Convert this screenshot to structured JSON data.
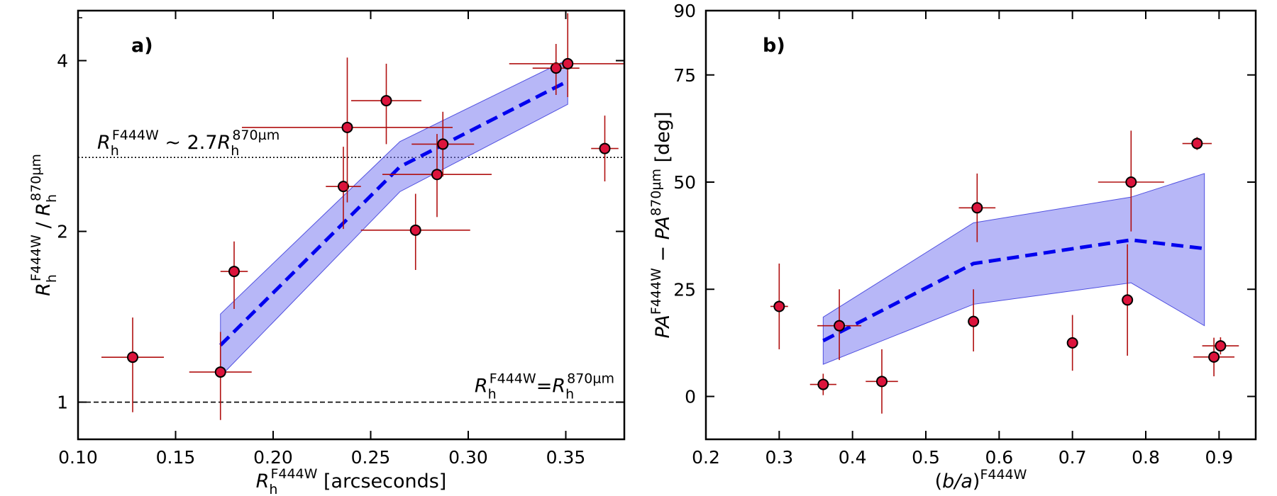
{
  "chart_data": [
    {
      "type": "scatter",
      "panel_label": "a)",
      "xlabel": "R_h^F444W [arcseconds]",
      "ylabel": "R_h^F444W / R_h^870µm",
      "xlabel_parts": {
        "main": "R",
        "sub": "h",
        "sup": "F444W",
        "rest": " [arcseconds]"
      },
      "ylabel_parts": {
        "main": "R",
        "sub": "h",
        "sup": "F444W",
        "sep": " / ",
        "main2": "R",
        "sub2": "h",
        "sup2": "870µm"
      },
      "xscale": "linear",
      "yscale": "log",
      "xlim": [
        0.1,
        0.38
      ],
      "ylim": [
        0.86,
        4.9
      ],
      "xticks": [
        0.1,
        0.15,
        0.2,
        0.25,
        0.3,
        0.35
      ],
      "xtick_labels": [
        "0.10",
        "0.15",
        "0.20",
        "0.25",
        "0.30",
        "0.35"
      ],
      "yticks": [
        1,
        2,
        4
      ],
      "ytick_labels": [
        "1",
        "2",
        "4"
      ],
      "points": [
        {
          "x": 0.128,
          "y": 1.2,
          "xerr": 0.016,
          "yerr_lo": 0.24,
          "yerr_hi": 0.21
        },
        {
          "x": 0.173,
          "y": 1.13,
          "xerr": 0.016,
          "yerr_lo": 0.2,
          "yerr_hi": 0.2
        },
        {
          "x": 0.18,
          "y": 1.7,
          "xerr": 0.007,
          "yerr_lo": 0.24,
          "yerr_hi": 0.22
        },
        {
          "x": 0.236,
          "y": 2.4,
          "xerr": 0.009,
          "yerr_lo": 0.38,
          "yerr_hi": 0.42
        },
        {
          "x": 0.238,
          "y": 3.05,
          "xerr": 0.054,
          "yerr_lo": 0.8,
          "yerr_hi": 1.0
        },
        {
          "x": 0.258,
          "y": 3.4,
          "xerr": 0.018,
          "yerr_lo": 0.55,
          "yerr_hi": 0.55
        },
        {
          "x": 0.273,
          "y": 2.01,
          "xerr": 0.028,
          "yerr_lo": 0.3,
          "yerr_hi": 0.32
        },
        {
          "x": 0.284,
          "y": 2.52,
          "xerr": 0.028,
          "yerr_lo": 0.4,
          "yerr_hi": 0.45
        },
        {
          "x": 0.287,
          "y": 2.85,
          "xerr": 0.016,
          "yerr_lo": 0.35,
          "yerr_hi": 0.4
        },
        {
          "x": 0.345,
          "y": 3.88,
          "xerr": 0.012,
          "yerr_lo": 0.4,
          "yerr_hi": 0.4
        },
        {
          "x": 0.351,
          "y": 3.95,
          "xerr": 0.03,
          "yerr_lo": 0.5,
          "yerr_hi": 0.9
        },
        {
          "x": 0.37,
          "y": 2.8,
          "xerr": 0.007,
          "yerr_lo": 0.35,
          "yerr_hi": 0.4
        }
      ],
      "trend": {
        "x": [
          0.173,
          0.265,
          0.351
        ],
        "y": [
          1.26,
          2.6,
          3.68
        ],
        "band_lo": [
          1.11,
          2.35,
          3.35
        ],
        "band_hi": [
          1.43,
          2.88,
          4.02
        ]
      },
      "hlines": [
        {
          "y": 2.7,
          "style": "dotted"
        },
        {
          "y": 1.0,
          "style": "dashed"
        }
      ],
      "annotations": [
        {
          "text": "R_h^F444W ~ 2.7R_h^870µm",
          "main": "R",
          "sub": "h",
          "sup": "F444W",
          "mid": " ~ 2.7",
          "main2": "R",
          "sub2": "h",
          "sup2": "870µm"
        },
        {
          "text": "R_h^F444W=R_h^870µm",
          "main": "R",
          "sub": "h",
          "sup": "F444W",
          "mid": "=",
          "main2": "R",
          "sub2": "h",
          "sup2": "870µm"
        }
      ]
    },
    {
      "type": "scatter",
      "panel_label": "b)",
      "xlabel": "(b/a)^F444W",
      "ylabel": "PA^F444W − PA^870µm [deg]",
      "xlabel_parts": {
        "pre": "(",
        "it": "b/a",
        "post": ")",
        "sup": "F444W"
      },
      "ylabel_parts": {
        "main": "PA",
        "sup": "F444W",
        "mid": " − ",
        "main2": "PA",
        "sup2": "870µm",
        "rest": " [deg]"
      },
      "xscale": "linear",
      "yscale": "linear",
      "xlim": [
        0.2,
        0.95
      ],
      "ylim": [
        -10,
        90
      ],
      "xticks": [
        0.2,
        0.3,
        0.4,
        0.5,
        0.6,
        0.7,
        0.8,
        0.9
      ],
      "xtick_labels": [
        "0.2",
        "0.3",
        "0.4",
        "0.5",
        "0.6",
        "0.7",
        "0.8",
        "0.9"
      ],
      "yticks": [
        0,
        25,
        50,
        75,
        90
      ],
      "ytick_labels": [
        "0",
        "25",
        "50",
        "75",
        "90"
      ],
      "points": [
        {
          "x": 0.3,
          "y": 21.0,
          "xerr": 0.012,
          "yerr_lo": 10,
          "yerr_hi": 10
        },
        {
          "x": 0.36,
          "y": 2.8,
          "xerr": 0.018,
          "yerr_lo": 2.5,
          "yerr_hi": 2.5
        },
        {
          "x": 0.382,
          "y": 16.5,
          "xerr": 0.03,
          "yerr_lo": 8,
          "yerr_hi": 8.5
        },
        {
          "x": 0.44,
          "y": 3.5,
          "xerr": 0.022,
          "yerr_lo": 7.5,
          "yerr_hi": 7.5
        },
        {
          "x": 0.565,
          "y": 17.5,
          "xerr": 0.0,
          "yerr_lo": 7,
          "yerr_hi": 7.5
        },
        {
          "x": 0.57,
          "y": 44.0,
          "xerr": 0.025,
          "yerr_lo": 8,
          "yerr_hi": 8
        },
        {
          "x": 0.7,
          "y": 12.5,
          "xerr": 0.005,
          "yerr_lo": 6.5,
          "yerr_hi": 6.5
        },
        {
          "x": 0.775,
          "y": 22.5,
          "xerr": 0.005,
          "yerr_lo": 13,
          "yerr_hi": 13
        },
        {
          "x": 0.78,
          "y": 50.0,
          "xerr": 0.045,
          "yerr_lo": 11.5,
          "yerr_hi": 12
        },
        {
          "x": 0.87,
          "y": 59.0,
          "xerr": 0.02,
          "yerr_lo": 1.5,
          "yerr_hi": 1.5
        },
        {
          "x": 0.893,
          "y": 9.2,
          "xerr": 0.028,
          "yerr_lo": 4.5,
          "yerr_hi": 4.5
        },
        {
          "x": 0.902,
          "y": 11.8,
          "xerr": 0.025,
          "yerr_lo": 2,
          "yerr_hi": 2
        }
      ],
      "trend": {
        "x": [
          0.36,
          0.565,
          0.78,
          0.88
        ],
        "y": [
          13.0,
          31.0,
          36.5,
          34.5
        ],
        "band_lo": [
          7.5,
          21.5,
          26.5,
          16.5
        ],
        "band_hi": [
          18.5,
          40.5,
          46.5,
          52.0
        ]
      },
      "hlines": [],
      "annotations": []
    }
  ],
  "colors": {
    "marker_fill": "#dc143c",
    "marker_edge": "#000000",
    "errorbar": "#b01010",
    "trend_line": "#0000ee",
    "band_fill": "#7070f0",
    "axes": "#000000"
  }
}
